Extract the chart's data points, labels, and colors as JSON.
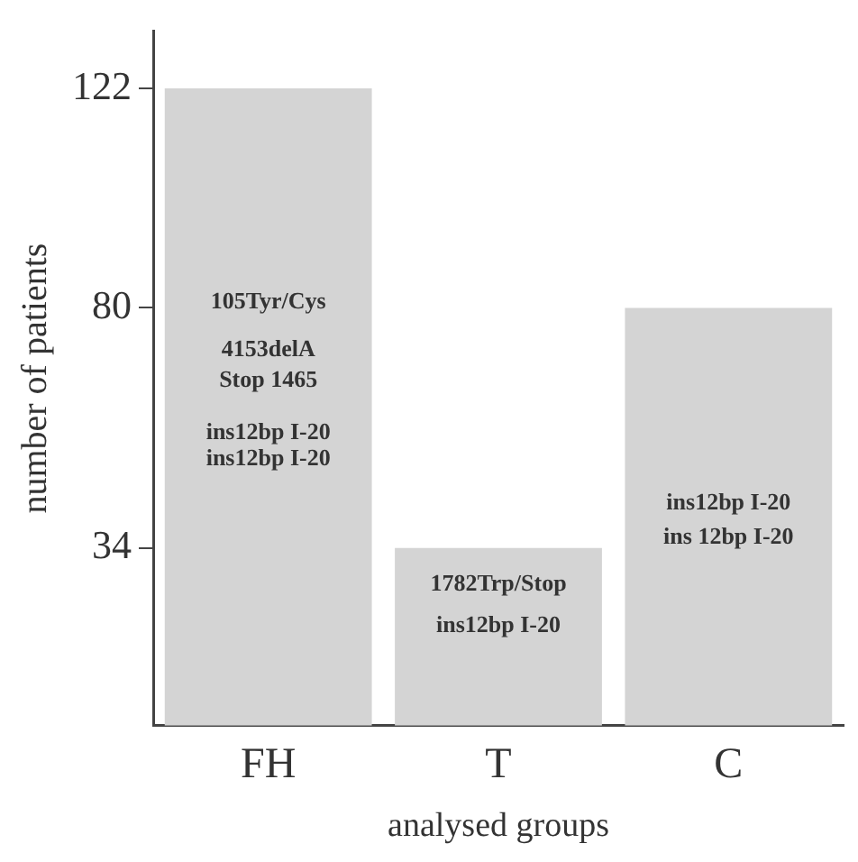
{
  "chart_data": {
    "type": "bar",
    "xlabel": "analysed groups",
    "ylabel": "number of patients",
    "categories": [
      "FH",
      "T",
      "C"
    ],
    "values": [
      122,
      34,
      80
    ],
    "color": "#d4d4d4",
    "ylim": [
      0,
      133
    ],
    "yticks": [
      34,
      80,
      122
    ],
    "grid": false,
    "legend": false,
    "annotations": [
      "105Tyr/Cys",
      "4153delA",
      "Stop 1465",
      "ins12bp I-20",
      "ins12bp I-20",
      "1782Trp/Stop",
      "ins12bp I-20",
      "ins12bp I-20",
      "ins 12bp I-20"
    ]
  }
}
